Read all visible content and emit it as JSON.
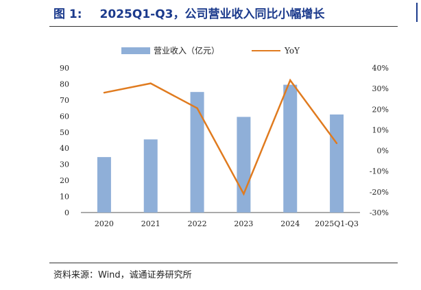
{
  "figure": {
    "label": "图 1:",
    "title": "2025Q1-Q3，公司营业收入同比小幅增长"
  },
  "source": "资料来源：Wind，诚通证券研究所",
  "colors": {
    "title": "#1b3a8c",
    "bar": "#8fafd8",
    "line": "#e07b1f",
    "axis": "#555555",
    "text": "#222222"
  },
  "chart_data": {
    "type": "bar",
    "categories": [
      "2020",
      "2021",
      "2022",
      "2023",
      "2024",
      "2025Q1-Q3"
    ],
    "series": [
      {
        "name": "营业收入（亿元）",
        "type": "bar",
        "axis": "left",
        "values": [
          34.5,
          45.5,
          75,
          59.5,
          79.5,
          61
        ]
      },
      {
        "name": "YoY",
        "type": "line",
        "axis": "right",
        "values": [
          0.28,
          0.325,
          0.205,
          -0.21,
          0.34,
          0.035
        ]
      }
    ],
    "left_axis": {
      "min": 0,
      "max": 90,
      "ticks": [
        "0",
        "10",
        "20",
        "30",
        "40",
        "50",
        "60",
        "70",
        "80",
        "90"
      ]
    },
    "right_axis": {
      "min": -0.3,
      "max": 0.4,
      "ticks": [
        "-30%",
        "-20%",
        "-10%",
        "0%",
        "10%",
        "20%",
        "30%",
        "40%"
      ]
    },
    "legend_position": "top",
    "grid": false
  }
}
